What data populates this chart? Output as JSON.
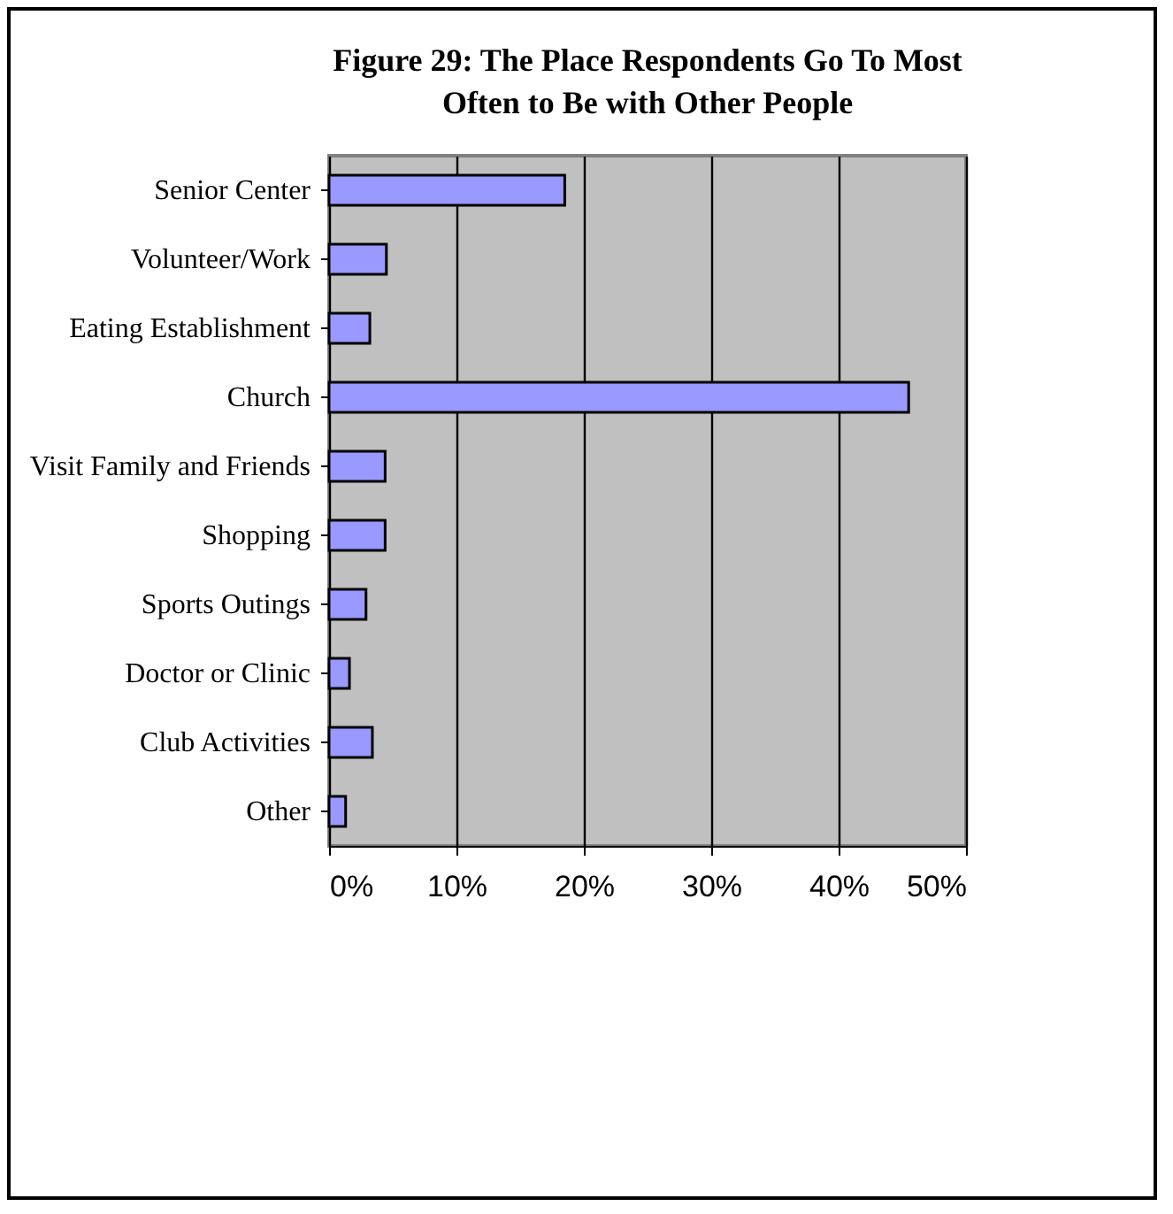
{
  "chart_data": {
    "type": "bar",
    "orientation": "horizontal",
    "title": "Figure 29: The Place Respondents Go To Most Often to Be with Other People",
    "categories": [
      "Senior Center",
      "Volunteer/Work",
      "Eating Establishment",
      "Church",
      "Visit Family and Friends",
      "Shopping",
      "Sports Outings",
      "Doctor or Clinic",
      "Club Activities",
      "Other"
    ],
    "values": [
      18.5,
      4.5,
      3.2,
      45.5,
      4.4,
      4.4,
      2.9,
      1.6,
      3.4,
      1.3
    ],
    "color": "#9999ff",
    "xlim": [
      0,
      50
    ],
    "xticks": [
      {
        "value": 0,
        "label": "0%"
      },
      {
        "value": 10,
        "label": "10%"
      },
      {
        "value": 20,
        "label": "20%"
      },
      {
        "value": 30,
        "label": "30%"
      },
      {
        "value": 40,
        "label": "40%"
      },
      {
        "value": 50,
        "label": "50%"
      }
    ],
    "grid": "x"
  }
}
